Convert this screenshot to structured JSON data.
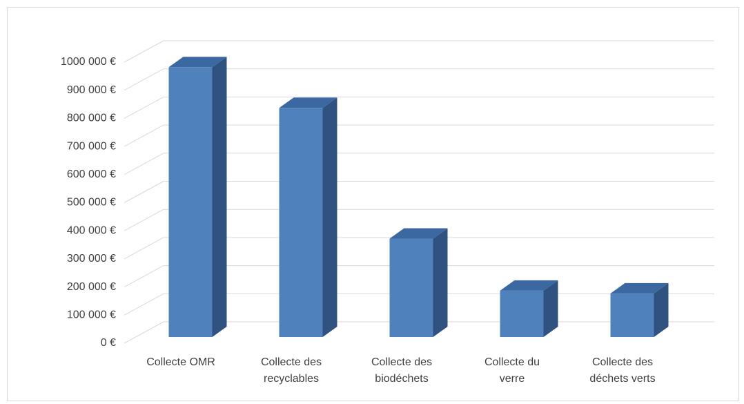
{
  "chart_data": {
    "type": "bar3d",
    "categories": [
      "Collecte OMR",
      "Collecte des recyclables",
      "Collecte des biodéchets",
      "Collecte du verre",
      "Collecte des déchets verts"
    ],
    "values": [
      960000,
      815000,
      350000,
      165000,
      155000
    ],
    "color": "#4f81bd",
    "ylim": [
      0,
      1000000
    ],
    "yticks": [
      {
        "value": 0,
        "label": "0 €"
      },
      {
        "value": 100000,
        "label": "100 000 €"
      },
      {
        "value": 200000,
        "label": "200 000 €"
      },
      {
        "value": 300000,
        "label": "300 000 €"
      },
      {
        "value": 400000,
        "label": "400 000 €"
      },
      {
        "value": 500000,
        "label": "500 000 €"
      },
      {
        "value": 600000,
        "label": "600 000 €"
      },
      {
        "value": 700000,
        "label": "700 000 €"
      },
      {
        "value": 800000,
        "label": "800 000 €"
      },
      {
        "value": 900000,
        "label": "900 000 €"
      },
      {
        "value": 1000000,
        "label": "1000 000 €"
      }
    ],
    "grid": true
  }
}
